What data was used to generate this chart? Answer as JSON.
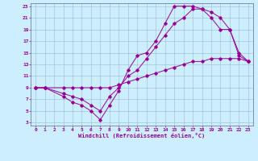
{
  "xlabel": "Windchill (Refroidissement éolien,°C)",
  "bg_color": "#cceeff",
  "line_color": "#990099",
  "grid_color": "#99bbcc",
  "xlim": [
    -0.5,
    23.5
  ],
  "ylim": [
    2.5,
    23.5
  ],
  "xticks": [
    0,
    1,
    2,
    3,
    4,
    5,
    6,
    7,
    8,
    9,
    10,
    11,
    12,
    13,
    14,
    15,
    16,
    17,
    18,
    19,
    20,
    21,
    22,
    23
  ],
  "yticks": [
    3,
    5,
    7,
    9,
    11,
    13,
    15,
    17,
    19,
    21,
    23
  ],
  "line1_x": [
    0,
    1,
    3,
    4,
    5,
    6,
    7,
    8,
    9,
    10,
    11,
    12,
    13,
    14,
    15,
    16,
    17,
    18,
    19,
    20,
    21,
    22,
    23
  ],
  "line1_y": [
    9,
    9,
    7.5,
    6.5,
    6,
    5,
    3.5,
    6,
    8.5,
    12,
    14.5,
    15,
    17,
    20,
    23,
    23,
    23,
    22.5,
    21,
    19,
    19,
    14.5,
    13.5
  ],
  "line2_x": [
    0,
    1,
    3,
    4,
    5,
    6,
    7,
    8,
    9,
    10,
    11,
    12,
    13,
    14,
    15,
    16,
    17,
    18,
    19,
    20,
    21,
    22,
    23
  ],
  "line2_y": [
    9,
    9,
    8,
    7.5,
    7,
    6,
    5,
    7.5,
    9,
    11,
    12,
    14,
    16,
    18,
    20,
    21,
    22.5,
    22.5,
    22,
    21,
    19,
    15,
    13.5
  ],
  "line3_x": [
    0,
    1,
    3,
    4,
    5,
    6,
    7,
    8,
    9,
    10,
    11,
    12,
    13,
    14,
    15,
    16,
    17,
    18,
    19,
    20,
    21,
    22,
    23
  ],
  "line3_y": [
    9,
    9,
    9,
    9,
    9,
    9,
    9,
    9,
    9.5,
    10,
    10.5,
    11,
    11.5,
    12,
    12.5,
    13,
    13.5,
    13.5,
    14,
    14,
    14,
    14,
    13.5
  ]
}
